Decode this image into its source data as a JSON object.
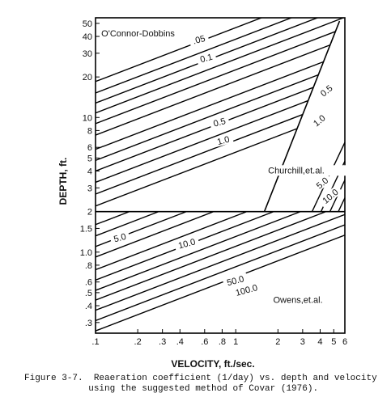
{
  "chart_data": {
    "type": "line",
    "xlabel": "VELOCITY, ft./sec.",
    "ylabel": "DEPTH, ft.",
    "x_scale": "log",
    "y_scale": "log",
    "xlim": [
      0.1,
      6
    ],
    "ylim": [
      0.25,
      55
    ],
    "x_ticks": [
      {
        "value": 0.1,
        "label": ".1"
      },
      {
        "value": 0.2,
        "label": ".2"
      },
      {
        "value": 0.3,
        "label": ".3"
      },
      {
        "value": 0.4,
        "label": ".4"
      },
      {
        "value": 0.6,
        "label": ".6"
      },
      {
        "value": 0.8,
        "label": ".8"
      },
      {
        "value": 1,
        "label": "1"
      },
      {
        "value": 2,
        "label": "2"
      },
      {
        "value": 3,
        "label": "3"
      },
      {
        "value": 4,
        "label": "4"
      },
      {
        "value": 5,
        "label": "5"
      },
      {
        "value": 6,
        "label": "6"
      }
    ],
    "y_ticks": [
      {
        "value": 0.3,
        "label": ".3"
      },
      {
        "value": 0.4,
        "label": ".4"
      },
      {
        "value": 0.5,
        "label": ".5"
      },
      {
        "value": 0.6,
        "label": ".6"
      },
      {
        "value": 0.8,
        "label": ".8"
      },
      {
        "value": 1.0,
        "label": "1.0"
      },
      {
        "value": 1.5,
        "label": "1.5"
      },
      {
        "value": 2,
        "label": "2"
      },
      {
        "value": 3,
        "label": "3"
      },
      {
        "value": 4,
        "label": "4"
      },
      {
        "value": 5,
        "label": "5"
      },
      {
        "value": 6,
        "label": "6"
      },
      {
        "value": 8,
        "label": "8"
      },
      {
        "value": 10,
        "label": "10"
      },
      {
        "value": 20,
        "label": "20"
      },
      {
        "value": 30,
        "label": "30"
      },
      {
        "value": 40,
        "label": "40"
      },
      {
        "value": 50,
        "label": "50"
      }
    ],
    "regions": [
      {
        "name": "O'Connor-Dobbins",
        "x": 0.11,
        "y": 40
      },
      {
        "name": "Churchill,et.al.",
        "x": 1.7,
        "y": 3.85
      },
      {
        "name": "Owens,et.al.",
        "x": 1.85,
        "y": 0.42
      }
    ],
    "boundaries": [
      {
        "name": "depth-2ft",
        "points": [
          [
            0.1,
            2
          ],
          [
            6,
            2
          ]
        ]
      },
      {
        "name": "churchill-owens",
        "points": [
          [
            1.6,
            2
          ],
          [
            5.5,
            52
          ]
        ]
      }
    ],
    "od_lines": {
      "x_range": [
        0.1,
        6
      ],
      "intercepts_at_0_1": [
        18.5,
        15.2,
        12.8,
        10.8,
        9.0,
        7.4,
        5.8,
        4.8,
        4.0,
        3.3,
        2.7,
        2.2
      ]
    },
    "ow_lines": {
      "x_range": [
        0.1,
        6
      ],
      "intercepts_at_0_1": [
        1.6,
        1.32,
        1.1,
        0.92,
        0.74,
        0.62,
        0.52,
        0.44,
        0.37,
        0.31,
        0.26
      ]
    },
    "ch_lines": {
      "slope": 2.2,
      "intercepts_at_0_1": [
        0.0008,
        0.00058,
        0.00042,
        0.00031,
        0.00023,
        0.00017
      ]
    },
    "contour_labels": [
      {
        "text": ".05",
        "x": 0.55,
        "y": 37,
        "angle": -15
      },
      {
        "text": "0.1",
        "x": 0.62,
        "y": 27,
        "angle": -15
      },
      {
        "text": "0.5",
        "x": 0.77,
        "y": 9.0,
        "angle": -15
      },
      {
        "text": "1.0",
        "x": 0.82,
        "y": 6.6,
        "angle": -15
      },
      {
        "text": "0.5",
        "x": 4.5,
        "y": 15.5,
        "angle": -40
      },
      {
        "text": "1.0",
        "x": 4.0,
        "y": 9.3,
        "angle": -40
      },
      {
        "text": "5.0",
        "x": 4.2,
        "y": 3.2,
        "angle": -40
      },
      {
        "text": "10.0",
        "x": 4.8,
        "y": 2.55,
        "angle": -40
      },
      {
        "text": "5.0",
        "x": 0.15,
        "y": 1.25,
        "angle": -15
      },
      {
        "text": "10.0",
        "x": 0.45,
        "y": 1.13,
        "angle": -15
      },
      {
        "text": "50.0",
        "x": 1.0,
        "y": 0.6,
        "angle": -15
      },
      {
        "text": "100.0",
        "x": 1.2,
        "y": 0.51,
        "angle": -15
      }
    ]
  },
  "caption": {
    "line1": "Figure 3-7.  Reaeration coefficient (1/day) vs. depth and velocity",
    "line2": "            using the suggested method of Covar (1976)."
  }
}
